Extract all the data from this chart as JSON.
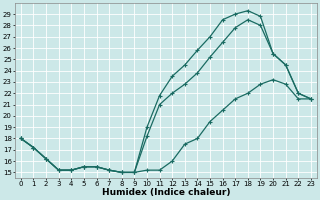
{
  "xlabel": "Humidex (Indice chaleur)",
  "background_color": "#cce8e8",
  "grid_color": "#ffffff",
  "line_color": "#1a6b62",
  "xlim": [
    -0.5,
    23.5
  ],
  "ylim": [
    14.5,
    30.0
  ],
  "x_ticks": [
    0,
    1,
    2,
    3,
    4,
    5,
    6,
    7,
    8,
    9,
    10,
    11,
    12,
    13,
    14,
    15,
    16,
    17,
    18,
    19,
    20,
    21,
    22,
    23
  ],
  "y_ticks": [
    15,
    16,
    17,
    18,
    19,
    20,
    21,
    22,
    23,
    24,
    25,
    26,
    27,
    28,
    29
  ],
  "line1_x": [
    0,
    1,
    2,
    3,
    4,
    5,
    6,
    7,
    8,
    9,
    10,
    11,
    12,
    13,
    14,
    15,
    16,
    17,
    18,
    19,
    20,
    21,
    22,
    23
  ],
  "line1_y": [
    18.0,
    17.2,
    16.2,
    15.2,
    15.2,
    15.5,
    15.5,
    15.2,
    15.0,
    15.0,
    15.2,
    15.2,
    16.0,
    17.5,
    18.0,
    19.5,
    20.5,
    21.5,
    22.0,
    22.8,
    23.2,
    22.8,
    21.5,
    21.5
  ],
  "line2_x": [
    0,
    1,
    2,
    3,
    4,
    5,
    6,
    7,
    8,
    9,
    10,
    11,
    12,
    13,
    14,
    15,
    16,
    17,
    18,
    19,
    20,
    21,
    22,
    23
  ],
  "line2_y": [
    18.0,
    17.2,
    16.2,
    15.2,
    15.2,
    15.5,
    15.5,
    15.2,
    15.0,
    15.0,
    19.0,
    21.8,
    23.5,
    24.5,
    25.8,
    27.0,
    28.5,
    29.0,
    29.3,
    28.8,
    25.5,
    24.5,
    22.0,
    21.5
  ],
  "line3_x": [
    0,
    1,
    2,
    3,
    4,
    5,
    6,
    7,
    8,
    9,
    10,
    11,
    12,
    13,
    14,
    15,
    16,
    17,
    18,
    19,
    20,
    21,
    22,
    23
  ],
  "line3_y": [
    18.0,
    17.2,
    16.2,
    15.2,
    15.2,
    15.5,
    15.5,
    15.2,
    15.0,
    15.0,
    18.2,
    21.0,
    22.0,
    22.8,
    23.8,
    25.2,
    26.5,
    27.8,
    28.5,
    28.0,
    25.5,
    24.5,
    22.0,
    21.5
  ],
  "marker": "+",
  "markersize": 3,
  "linewidth": 0.9,
  "tick_fontsize": 5.0,
  "xlabel_fontsize": 6.5
}
